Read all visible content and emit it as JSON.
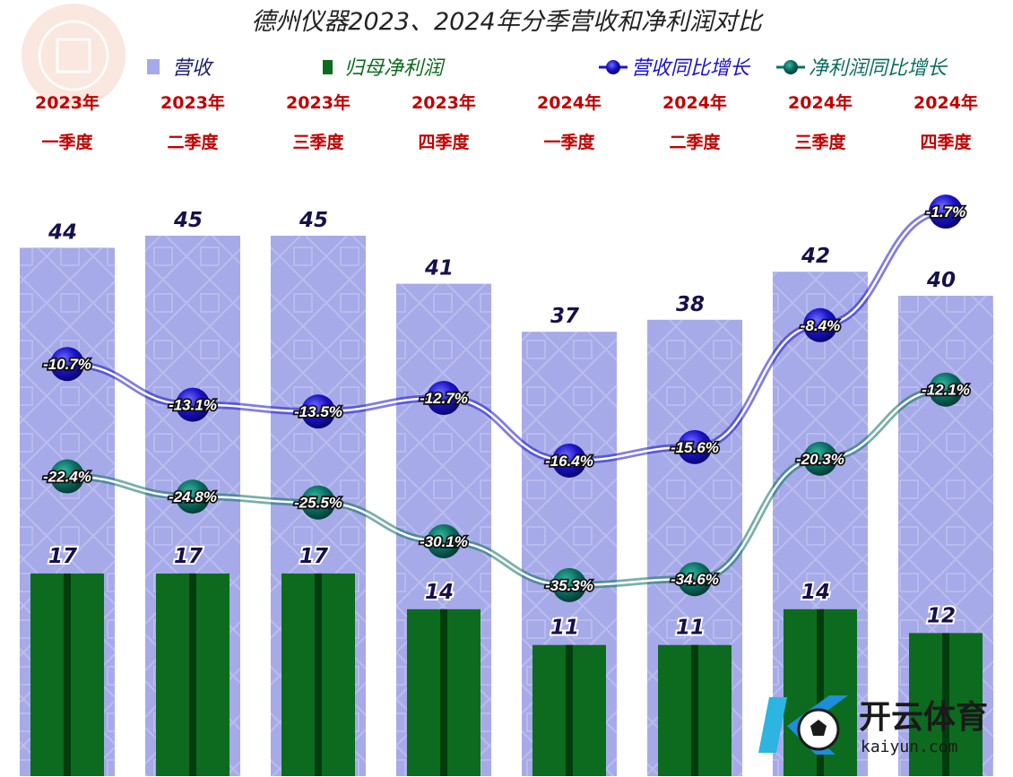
{
  "chart_data": {
    "type": "bar",
    "title": "德州仪器2023、2024年分季营收和净利润对比",
    "categories": [
      [
        "2023年",
        "一季度"
      ],
      [
        "2023年",
        "二季度"
      ],
      [
        "2023年",
        "三季度"
      ],
      [
        "2023年",
        "四季度"
      ],
      [
        "2024年",
        "一季度"
      ],
      [
        "2024年",
        "二季度"
      ],
      [
        "2024年",
        "三季度"
      ],
      [
        "2024年",
        "四季度"
      ]
    ],
    "bar_series": [
      {
        "name": "营收",
        "values": [
          44,
          45,
          45,
          41,
          37,
          38,
          42,
          40
        ],
        "labels": [
          "44",
          "45",
          "45",
          "41",
          "37",
          "38",
          "42",
          "40"
        ],
        "color": "#a6aae8"
      },
      {
        "name": "归母净利润",
        "values": [
          17,
          17,
          17,
          14,
          11,
          11,
          14,
          12
        ],
        "labels": [
          "17",
          "17",
          "17",
          "14",
          "11",
          "11",
          "14",
          "12"
        ],
        "color": "#0c6b1e"
      }
    ],
    "line_series": [
      {
        "name": "营收同比增长",
        "values": [
          -10.7,
          -13.1,
          -13.5,
          -12.7,
          -16.4,
          -15.6,
          -8.4,
          -1.7
        ],
        "labels": [
          "-10.7%",
          "-13.1%",
          "-13.5%",
          "-12.7%",
          "-16.4%",
          "-15.6%",
          "-8.4%",
          "-1.7%"
        ],
        "color": "#1a12c8"
      },
      {
        "name": "净利润同比增长",
        "values": [
          -22.4,
          -24.8,
          -25.5,
          -30.1,
          -35.3,
          -34.6,
          -20.3,
          -12.1
        ],
        "labels": [
          "-22.4%",
          "-24.8%",
          "-25.5%",
          "-30.1%",
          "-35.3%",
          "-34.6%",
          "-20.3%",
          "-12.1%"
        ],
        "color": "#0b6e62"
      }
    ],
    "legend_position": "top",
    "grid": false
  },
  "watermark": {
    "brand_cn": "开云体育",
    "brand_en": "kaiyun.com"
  }
}
